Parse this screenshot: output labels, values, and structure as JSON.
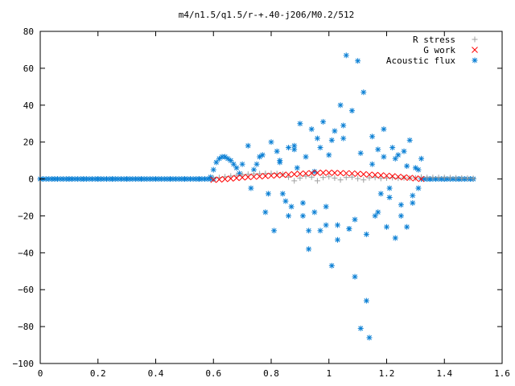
{
  "chart_data": {
    "type": "scatter",
    "title": "m4/n1.5/q1.5/r-+.40-j206/M0.2/512",
    "xlabel": "",
    "ylabel": "",
    "xlim": [
      0,
      1.6
    ],
    "ylim": [
      -100,
      80
    ],
    "xticks": [
      "0",
      "0.2",
      "0.4",
      "0.6",
      "0.8",
      "1",
      "1.2",
      "1.4",
      "1.6"
    ],
    "yticks": [
      "80",
      "60",
      "40",
      "20",
      "0",
      "−20",
      "−40",
      "−60",
      "−80",
      "−100"
    ],
    "grid": false,
    "legend_position": "top-right",
    "series": [
      {
        "name": "R stress",
        "marker": "plus",
        "color": "#a0a0a0",
        "x": [
          0.6,
          0.62,
          0.64,
          0.66,
          0.68,
          0.7,
          0.72,
          0.74,
          0.76,
          0.78,
          0.8,
          0.82,
          0.84,
          0.86,
          0.88,
          0.9,
          0.92,
          0.94,
          0.96,
          0.98,
          1.0,
          1.02,
          1.04,
          1.06,
          1.08,
          1.1,
          1.12,
          1.14,
          1.16,
          1.18,
          1.2,
          1.22,
          1.24,
          1.26,
          1.28,
          1.3,
          1.32,
          1.34,
          1.36,
          1.38,
          1.4,
          1.42,
          1.44,
          1.46,
          1.48,
          1.5
        ],
        "y": [
          0.5,
          0.8,
          1.2,
          1.6,
          2.0,
          2.4,
          2.6,
          2.8,
          2.9,
          3.0,
          3.0,
          2.9,
          2.6,
          1.0,
          -1.0,
          0.5,
          1.5,
          1.0,
          -1.0,
          0.8,
          1.2,
          0.5,
          -0.5,
          0.8,
          1.0,
          0.2,
          -0.5,
          0.6,
          0.8,
          0.3,
          0.5,
          0.7,
          0.4,
          0.6,
          0.5,
          0.6,
          1.0,
          0.8,
          0.8,
          0.8,
          0.8,
          0.7,
          0.6,
          0.5,
          0.4,
          0.3
        ]
      },
      {
        "name": "G work",
        "marker": "cross",
        "color": "#ff0000",
        "x": [
          0.6,
          0.62,
          0.64,
          0.66,
          0.68,
          0.7,
          0.72,
          0.74,
          0.76,
          0.78,
          0.8,
          0.82,
          0.84,
          0.86,
          0.88,
          0.9,
          0.92,
          0.94,
          0.96,
          0.98,
          1.0,
          1.02,
          1.04,
          1.06,
          1.08,
          1.1,
          1.12,
          1.14,
          1.16,
          1.18,
          1.2,
          1.22,
          1.24,
          1.26,
          1.28,
          1.3,
          1.32
        ],
        "y": [
          -0.5,
          -0.3,
          -0.1,
          0.2,
          0.5,
          0.8,
          1.0,
          1.2,
          1.4,
          1.6,
          1.8,
          2.0,
          2.2,
          2.4,
          2.6,
          2.8,
          3.0,
          3.2,
          3.3,
          3.4,
          3.4,
          3.3,
          3.2,
          3.1,
          3.0,
          2.8,
          2.6,
          2.4,
          2.2,
          2.0,
          1.8,
          1.5,
          1.2,
          0.9,
          0.6,
          0.3,
          0.0
        ]
      },
      {
        "name": "Acoustic flux",
        "marker": "asterisk",
        "color": "#0a7fd4",
        "x": [
          0.0,
          0.05,
          0.1,
          0.15,
          0.2,
          0.25,
          0.3,
          0.35,
          0.4,
          0.45,
          0.5,
          0.55,
          0.59,
          0.6,
          0.61,
          0.62,
          0.63,
          0.64,
          0.65,
          0.66,
          0.67,
          0.68,
          0.69,
          0.7,
          0.72,
          0.73,
          0.75,
          0.76,
          0.78,
          0.8,
          0.81,
          0.82,
          0.83,
          0.84,
          0.85,
          0.86,
          0.87,
          0.88,
          0.89,
          0.9,
          0.91,
          0.92,
          0.93,
          0.94,
          0.95,
          0.96,
          0.97,
          0.98,
          0.99,
          1.0,
          1.01,
          1.02,
          1.03,
          1.04,
          1.05,
          1.06,
          1.07,
          1.08,
          1.09,
          1.1,
          1.11,
          1.12,
          1.13,
          1.14,
          1.15,
          1.16,
          1.17,
          1.18,
          1.19,
          1.2,
          1.21,
          1.22,
          1.23,
          1.24,
          1.25,
          1.26,
          1.27,
          1.28,
          1.29,
          1.3,
          1.31,
          1.32,
          1.35,
          1.4,
          1.45,
          1.5,
          0.74,
          0.77,
          0.79,
          0.83,
          0.86,
          0.88,
          0.91,
          0.93,
          0.95,
          0.97,
          0.99,
          1.01,
          1.03,
          1.05,
          1.07,
          1.09,
          1.11,
          1.13,
          1.15,
          1.17,
          1.19,
          1.21,
          1.23,
          1.25,
          1.27,
          1.29,
          1.31
        ],
        "y": [
          0,
          0,
          0,
          0,
          0,
          0,
          0,
          0,
          0,
          0,
          0,
          0,
          1,
          5,
          9,
          11,
          12,
          12,
          11,
          10,
          8,
          6,
          3,
          8,
          18,
          -5,
          8,
          12,
          -18,
          20,
          -28,
          15,
          10,
          -8,
          -12,
          17,
          -15,
          18,
          6,
          30,
          -20,
          12,
          -38,
          27,
          -18,
          22,
          -28,
          31,
          -25,
          13,
          -47,
          26,
          -25,
          40,
          22,
          67,
          -27,
          37,
          -53,
          64,
          -81,
          47,
          -66,
          -86,
          23,
          -20,
          16,
          -8,
          27,
          -26,
          -10,
          17,
          -32,
          13,
          -20,
          15,
          -26,
          21,
          -13,
          6,
          -5,
          11,
          0,
          0,
          0,
          0,
          5,
          13,
          -8,
          9,
          -20,
          16,
          -13,
          -28,
          4,
          17,
          -15,
          21,
          -33,
          29,
          -27,
          -22,
          14,
          -30,
          8,
          -18,
          12,
          -5,
          11,
          -14,
          7,
          -9,
          5
        ]
      }
    ]
  }
}
